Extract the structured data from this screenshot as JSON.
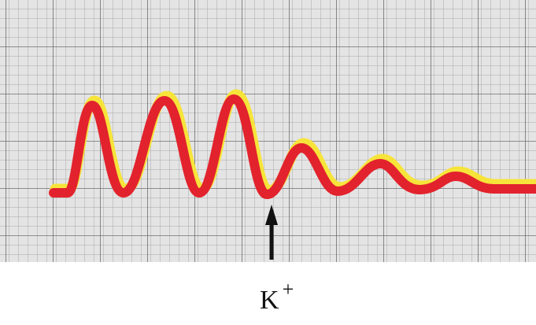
{
  "annotation": {
    "label": "K",
    "superscript": "+"
  }
}
